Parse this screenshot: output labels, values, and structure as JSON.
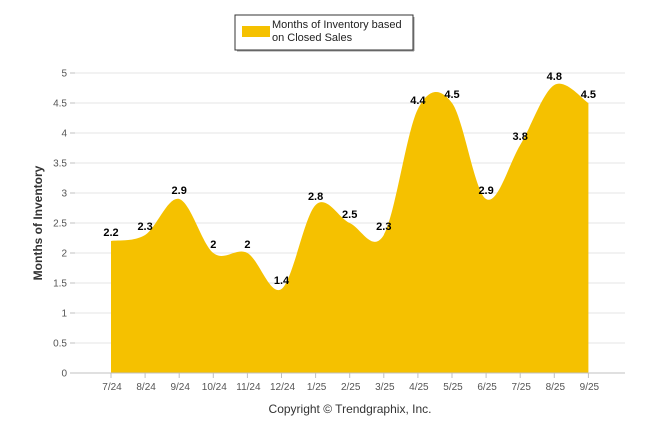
{
  "chart_data": {
    "type": "area",
    "categories": [
      "7/24",
      "8/24",
      "9/24",
      "10/24",
      "11/24",
      "12/24",
      "1/25",
      "2/25",
      "3/25",
      "4/25",
      "5/25",
      "6/25",
      "7/25",
      "8/25",
      "9/25"
    ],
    "series": [
      {
        "name": "Months of Inventory based on Closed Sales",
        "values": [
          2.2,
          2.3,
          2.9,
          2,
          2,
          1.4,
          2.8,
          2.5,
          2.3,
          4.4,
          4.5,
          2.9,
          3.8,
          4.8,
          4.5
        ]
      }
    ],
    "data_labels": [
      "2.2",
      "2.3",
      "2.9",
      "2",
      "2",
      "1.4",
      "2.8",
      "2.5",
      "2.3",
      "4.4",
      "4.5",
      "2.9",
      "3.8",
      "4.8",
      "4.5"
    ],
    "yticks": [
      0,
      0.5,
      1,
      1.5,
      2,
      2.5,
      3,
      3.5,
      4,
      4.5,
      5
    ],
    "ytick_labels": [
      "0",
      "0.5",
      "1",
      "1.5",
      "2",
      "2.5",
      "3",
      "3.5",
      "4",
      "4.5",
      "5"
    ],
    "ylim": [
      0,
      5
    ],
    "ylabel": "Months of Inventory",
    "xlabel": "",
    "grid": true,
    "legend": {
      "position": "top-center",
      "line1": "Months of Inventory based",
      "line2": "on Closed Sales"
    },
    "colors": {
      "area": "#F5C100",
      "grid": "#E6E6E6",
      "axis": "#C0C0C0"
    }
  },
  "footer": {
    "copyright": "Copyright © Trendgraphix, Inc."
  }
}
